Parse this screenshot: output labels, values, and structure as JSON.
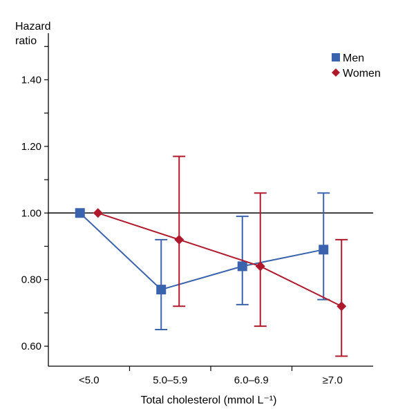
{
  "chart_data": {
    "type": "line",
    "ylabel_line1": "Hazard",
    "ylabel_line2": "ratio",
    "xlabel": "Total cholesterol (mmol L⁻¹)",
    "categories": [
      "<5.0",
      "5.0–5.9",
      "6.0–6.9",
      "≥7.0"
    ],
    "ylim": [
      0.54,
      1.54
    ],
    "yticks": [
      0.6,
      0.8,
      1.0,
      1.2,
      1.4
    ],
    "ytick_labels": [
      "0.60",
      "0.80",
      "1.00",
      "1.20",
      "1.40"
    ],
    "reference_line": 1.0,
    "legend_position": "top-right",
    "series": [
      {
        "name": "Men",
        "color": "#3a63ad",
        "marker": "square",
        "values": [
          1.0,
          0.77,
          0.84,
          0.89
        ],
        "ci_low": [
          null,
          0.65,
          0.725,
          0.74
        ],
        "ci_high": [
          null,
          0.92,
          0.99,
          1.06
        ]
      },
      {
        "name": "Women",
        "color": "#b0182c",
        "marker": "diamond",
        "values": [
          1.0,
          0.92,
          0.84,
          0.72
        ],
        "ci_low": [
          null,
          0.72,
          0.66,
          0.57
        ],
        "ci_high": [
          null,
          1.17,
          1.06,
          0.92
        ]
      }
    ]
  }
}
